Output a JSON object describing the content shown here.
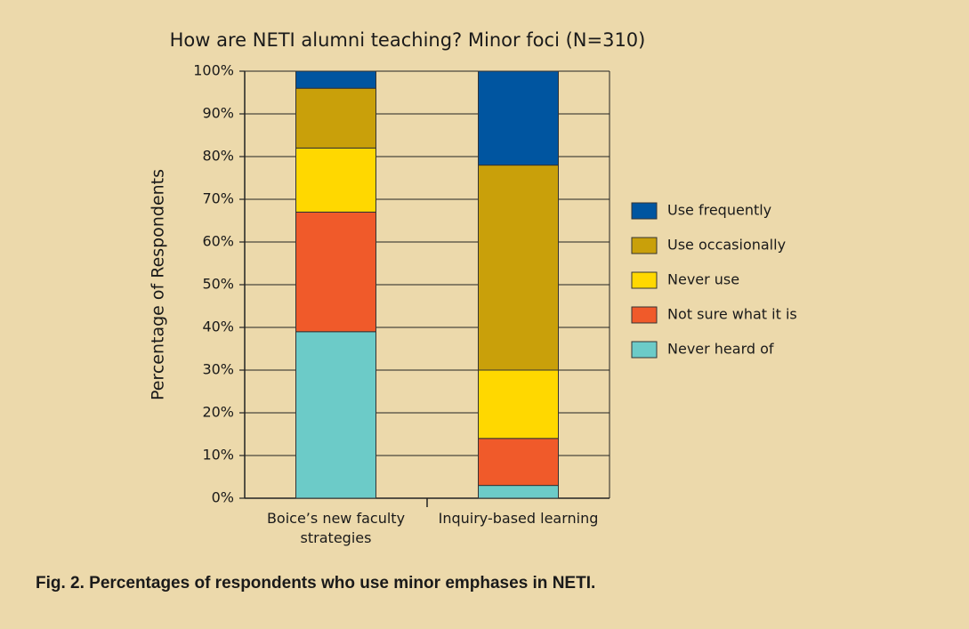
{
  "chart_data": {
    "type": "stacked_bar",
    "title": "How are NETI alumni teaching? Minor foci (N=310)",
    "y_label": "Percentage of Respondents",
    "caption": "Fig. 2. Percentages of respondents who use minor emphases in NETI.",
    "categories": [
      "Boice’s new faculty strategies",
      "Inquiry-based learning"
    ],
    "series": [
      {
        "name": "Never heard of",
        "color": "#6ccbc8",
        "values": [
          39,
          3
        ]
      },
      {
        "name": "Not sure what it is",
        "color": "#f05a2a",
        "values": [
          28,
          11
        ]
      },
      {
        "name": "Never use",
        "color": "#ffd800",
        "values": [
          15,
          16
        ]
      },
      {
        "name": "Use occasionally",
        "color": "#c9a00a",
        "values": [
          14,
          48
        ]
      },
      {
        "name": "Use frequently",
        "color": "#0055a0",
        "values": [
          4,
          22
        ]
      }
    ],
    "ylim": [
      0,
      100
    ],
    "yticks": [
      {
        "value": 0,
        "label": "0%"
      },
      {
        "value": 10,
        "label": "10%"
      },
      {
        "value": 20,
        "label": "20%"
      },
      {
        "value": 30,
        "label": "30%"
      },
      {
        "value": 40,
        "label": "40%"
      },
      {
        "value": 50,
        "label": "50%"
      },
      {
        "value": 60,
        "label": "60%"
      },
      {
        "value": 70,
        "label": "70%"
      },
      {
        "value": 80,
        "label": "80%"
      },
      {
        "value": 90,
        "label": "90%"
      },
      {
        "value": 100,
        "label": "100%"
      }
    ],
    "grid": true,
    "legend": "right"
  }
}
